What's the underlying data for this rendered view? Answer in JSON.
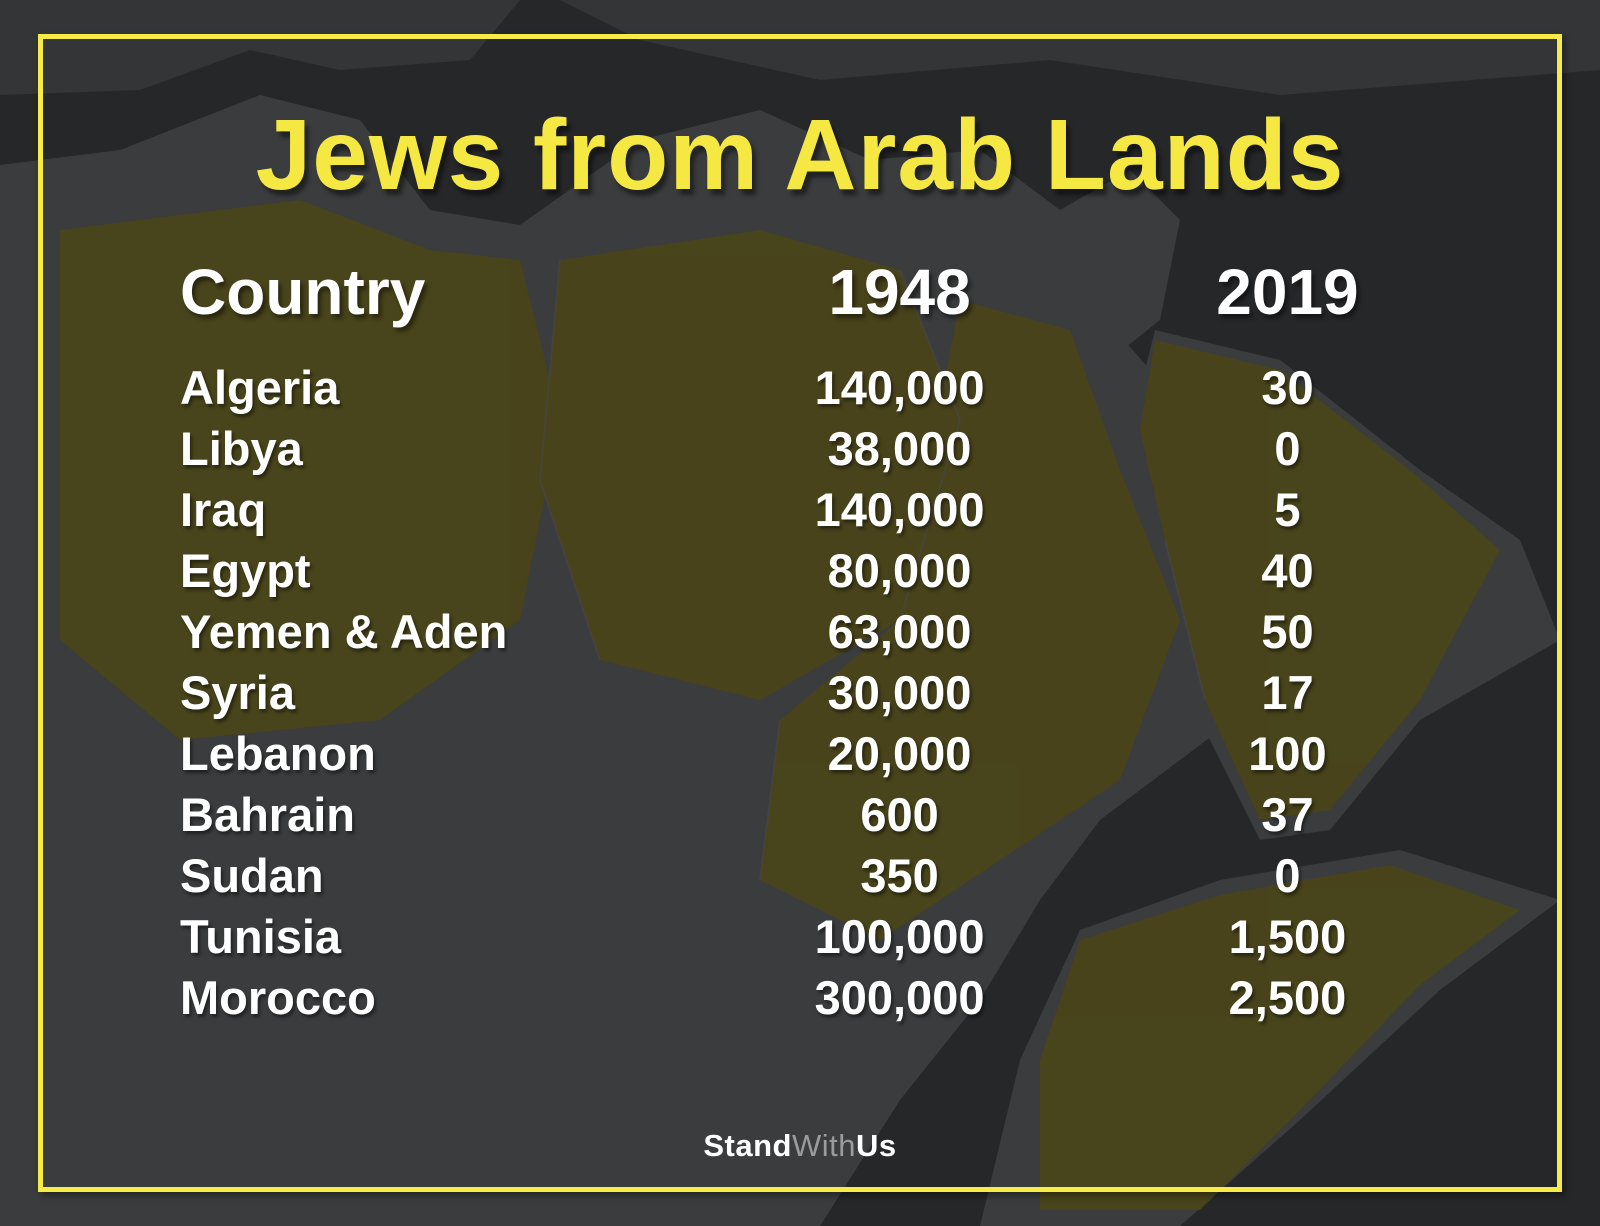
{
  "title": "Jews from Arab Lands",
  "chart_data": {
    "type": "table",
    "title": "Jews from Arab Lands",
    "columns": [
      "Country",
      "1948",
      "2019"
    ],
    "rows": [
      [
        "Algeria",
        "140,000",
        "30"
      ],
      [
        "Libya",
        "38,000",
        "0"
      ],
      [
        "Iraq",
        "140,000",
        "5"
      ],
      [
        "Egypt",
        "80,000",
        "40"
      ],
      [
        "Yemen & Aden",
        "63,000",
        "50"
      ],
      [
        "Syria",
        "30,000",
        "17"
      ],
      [
        "Lebanon",
        "20,000",
        "100"
      ],
      [
        "Bahrain",
        "600",
        "37"
      ],
      [
        "Sudan",
        "350",
        "0"
      ],
      [
        "Tunisia",
        "100,000",
        "1,500"
      ],
      [
        "Morocco",
        "300,000",
        "2,500"
      ]
    ],
    "legend_position": "none",
    "grid": false
  },
  "footer": {
    "brand_part_1": "Stand",
    "brand_part_2": "With",
    "brand_part_3": "Us"
  },
  "colors": {
    "background": "#28292b",
    "frame_yellow": "#f6eb47",
    "title_yellow": "#f5e843",
    "text_white": "#ffffff",
    "map_land": "#3a3c3d",
    "map_tint_olive": "#4c4514",
    "brand_gray": "#9b9b9b"
  },
  "icons": {
    "map_background": "middle-east-north-africa-map"
  }
}
